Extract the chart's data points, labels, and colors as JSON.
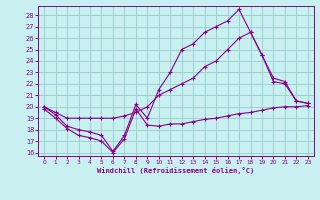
{
  "xlabel": "Windchill (Refroidissement éolien,°C)",
  "bg_color": "#c8f0f0",
  "line_color": "#880088",
  "grid_color": "#99cccc",
  "xlim_min": -0.5,
  "xlim_max": 23.5,
  "ylim_min": 15.7,
  "ylim_max": 28.8,
  "yticks": [
    16,
    17,
    18,
    19,
    20,
    21,
    22,
    23,
    24,
    25,
    26,
    27,
    28
  ],
  "xticks": [
    0,
    1,
    2,
    3,
    4,
    5,
    6,
    7,
    8,
    9,
    10,
    11,
    12,
    13,
    14,
    15,
    16,
    17,
    18,
    19,
    20,
    21,
    22,
    23
  ],
  "line1_x": [
    0,
    1,
    2,
    3,
    4,
    5,
    6,
    7,
    8,
    9,
    10,
    11,
    12,
    13,
    14,
    15,
    16,
    17,
    18,
    19,
    20,
    21,
    22,
    23
  ],
  "line1_y": [
    19.8,
    19.0,
    18.1,
    17.5,
    17.3,
    17.0,
    16.0,
    17.2,
    19.8,
    18.4,
    18.3,
    18.5,
    18.5,
    18.7,
    18.9,
    19.0,
    19.2,
    19.4,
    19.5,
    19.7,
    19.9,
    20.0,
    20.0,
    20.1
  ],
  "line2_x": [
    0,
    1,
    2,
    3,
    4,
    5,
    6,
    7,
    8,
    9,
    10,
    11,
    12,
    13,
    14,
    15,
    16,
    17,
    18,
    19,
    20,
    21,
    22,
    23
  ],
  "line2_y": [
    20.0,
    19.3,
    18.3,
    18.0,
    17.8,
    17.5,
    16.1,
    17.5,
    20.2,
    19.0,
    21.5,
    23.0,
    25.0,
    25.5,
    26.5,
    27.0,
    27.5,
    28.5,
    26.5,
    24.5,
    22.2,
    22.0,
    20.5,
    20.3
  ],
  "line3_x": [
    0,
    1,
    2,
    3,
    4,
    5,
    6,
    7,
    8,
    9,
    10,
    11,
    12,
    13,
    14,
    15,
    16,
    17,
    18,
    19,
    20,
    21,
    22,
    23
  ],
  "line3_y": [
    20.0,
    19.5,
    19.0,
    19.0,
    19.0,
    19.0,
    19.0,
    19.2,
    19.5,
    20.0,
    21.0,
    21.5,
    22.0,
    22.5,
    23.5,
    24.0,
    25.0,
    26.0,
    26.5,
    24.5,
    22.5,
    22.2,
    20.5,
    20.3
  ]
}
